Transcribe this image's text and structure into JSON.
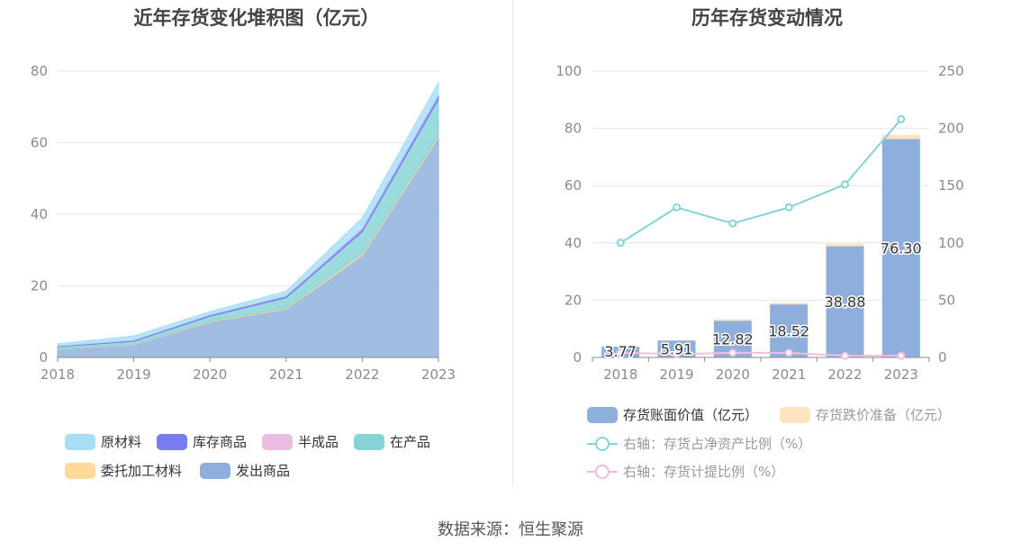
{
  "source": "数据来源：恒生聚源",
  "chart_data": [
    {
      "type": "area",
      "stacked": true,
      "title": "近年存货变化堆积图（亿元）",
      "x": [
        "2018",
        "2019",
        "2020",
        "2021",
        "2022",
        "2023"
      ],
      "ylim": [
        0,
        80
      ],
      "yticks": [
        0,
        20,
        40,
        60,
        80
      ],
      "grid": true,
      "legend_position": "bottom",
      "series": [
        {
          "name": "发出商品",
          "color": "#8eaedc",
          "values": [
            2.3,
            3.5,
            10.0,
            13.5,
            28.5,
            61.5
          ]
        },
        {
          "name": "委托加工材料",
          "color": "#ffd99a",
          "values": [
            0.1,
            0.1,
            0.2,
            0.3,
            0.5,
            0.5
          ]
        },
        {
          "name": "在产品",
          "color": "#86d3d5",
          "values": [
            0.6,
            0.9,
            1.3,
            2.9,
            6.0,
            10.0
          ]
        },
        {
          "name": "半成品",
          "color": "#e8bde0",
          "values": [
            0.0,
            0.0,
            0.0,
            0.0,
            0.1,
            0.1
          ]
        },
        {
          "name": "库存商品",
          "color": "#7a7bf0",
          "values": [
            0.2,
            0.3,
            0.4,
            0.5,
            0.9,
            1.2
          ]
        },
        {
          "name": "原材料",
          "color": "#a8ddf7",
          "values": [
            0.6,
            1.2,
            0.9,
            1.3,
            3.0,
            3.5
          ]
        }
      ],
      "legend_order": [
        "原材料",
        "库存商品",
        "半成品",
        "在产品",
        "委托加工材料",
        "发出商品"
      ]
    },
    {
      "type": "bar",
      "title": "历年存货变动情况",
      "categories": [
        "2018",
        "2019",
        "2020",
        "2021",
        "2022",
        "2023"
      ],
      "ylim_left": [
        0,
        100
      ],
      "yticks_left": [
        0,
        20,
        40,
        60,
        80,
        100
      ],
      "ylim_right": [
        0,
        250
      ],
      "yticks_right": [
        0,
        50,
        100,
        150,
        200,
        250
      ],
      "grid": true,
      "legend_position": "bottom",
      "series": [
        {
          "name": "存货账面价值（亿元）",
          "kind": "bar",
          "axis": "left",
          "color": "#8eaedc",
          "values": [
            3.77,
            5.91,
            12.82,
            18.52,
            38.88,
            76.3
          ],
          "labels": [
            "3.77",
            "5.91",
            "12.82",
            "18.52",
            "38.88",
            "76.30"
          ]
        },
        {
          "name": "存货跌价准备（亿元）",
          "kind": "bar",
          "axis": "left",
          "stacked": true,
          "color": "#ffe4bf",
          "values": [
            0.05,
            0.1,
            0.5,
            0.6,
            0.9,
            1.5
          ]
        },
        {
          "name": "右轴：存货占净资产比例（%）",
          "kind": "line",
          "axis": "right",
          "color": "#86d3d5",
          "values": [
            100,
            131,
            117,
            131,
            151,
            208
          ]
        },
        {
          "name": "右轴：存货计提比例（%）",
          "kind": "line",
          "axis": "right",
          "color": "#f2bddf",
          "values": [
            4,
            3,
            4,
            4,
            1.5,
            1.5
          ]
        }
      ]
    }
  ]
}
